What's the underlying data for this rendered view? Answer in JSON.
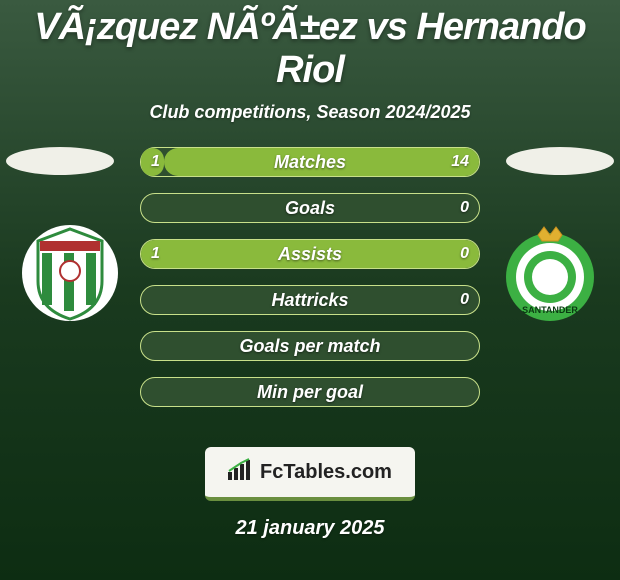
{
  "title": "VÃ¡zquez NÃºÃ±ez vs Hernando Riol",
  "subtitle": "Club competitions, Season 2024/2025",
  "date": "21 january 2025",
  "footer_brand": "FcTables.com",
  "colors": {
    "bg_top": "#3a5a40",
    "bg_mid": "#1a3a1f",
    "bg_bottom": "#0d2d12",
    "bar_bg": "#2f4f2f",
    "bar_border": "#c8e08a",
    "bar_fill": "#8aba3c",
    "ellipse": "#f0f0e8",
    "text": "#ffffff",
    "footer_bg": "#f5f5f0",
    "footer_accent": "#6a8f3f"
  },
  "crests": {
    "left": {
      "name": "cordoba-crest",
      "shape": "shield",
      "bg": "#ffffff",
      "stripe1": "#2e8b3d",
      "stripe2": "#ffffff",
      "top_band": "#b03030"
    },
    "right": {
      "name": "racing-santander-crest",
      "shape": "round",
      "ring": "#3cb043",
      "inner": "#ffffff",
      "crown": "#e0b030",
      "text": "SANTANDER"
    }
  },
  "bars": [
    {
      "label": "Matches",
      "left_val": "1",
      "right_val": "14",
      "left_pct": 6.7,
      "right_pct": 93.3
    },
    {
      "label": "Goals",
      "left_val": "",
      "right_val": "0",
      "left_pct": 0,
      "right_pct": 0
    },
    {
      "label": "Assists",
      "left_val": "1",
      "right_val": "0",
      "left_pct": 100,
      "right_pct": 0
    },
    {
      "label": "Hattricks",
      "left_val": "",
      "right_val": "0",
      "left_pct": 0,
      "right_pct": 0
    },
    {
      "label": "Goals per match",
      "left_val": "",
      "right_val": "",
      "left_pct": 0,
      "right_pct": 0
    },
    {
      "label": "Min per goal",
      "left_val": "",
      "right_val": "",
      "left_pct": 0,
      "right_pct": 0
    }
  ],
  "typography": {
    "title_fontsize": 38,
    "subtitle_fontsize": 18,
    "bar_label_fontsize": 18,
    "bar_val_fontsize": 16,
    "date_fontsize": 20
  }
}
